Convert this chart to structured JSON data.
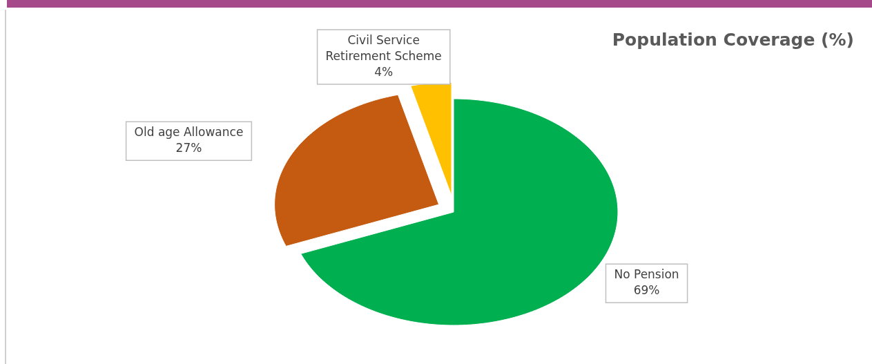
{
  "chart_data": {
    "type": "pie",
    "title": "Population Coverage (%)",
    "categories": [
      "No Pension",
      "Old age Allowance",
      "Civil Service Retirement Scheme"
    ],
    "values": [
      69,
      27,
      4
    ],
    "colors": [
      "#00b050",
      "#c55a11",
      "#ffc000"
    ],
    "value_labels": [
      "69%",
      "27%",
      "4%"
    ]
  }
}
